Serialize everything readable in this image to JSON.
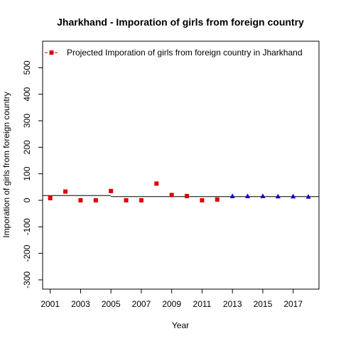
{
  "chart_data": {
    "type": "scatter",
    "title": "Jharkhand  -  Imporation of girls from foreign country",
    "xlabel": "Year",
    "ylabel": "Imporation of girls from foreign country",
    "xlim": [
      2000.5,
      2018.7
    ],
    "ylim": [
      -335,
      600
    ],
    "x_ticks": [
      2001,
      2003,
      2005,
      2007,
      2009,
      2011,
      2013,
      2015,
      2017
    ],
    "y_ticks": [
      -300,
      -200,
      -100,
      0,
      100,
      200,
      300,
      400,
      500
    ],
    "legend": {
      "placement": "top-left",
      "label": "Projected  Imporation of girls from foreign country  in  Jharkhand"
    },
    "series": [
      {
        "marker": "square",
        "color": "#dd0000",
        "points": [
          {
            "x": 2001,
            "y": 8
          },
          {
            "x": 2002,
            "y": 33
          },
          {
            "x": 2003,
            "y": 0
          },
          {
            "x": 2004,
            "y": 0
          },
          {
            "x": 2005,
            "y": 35
          },
          {
            "x": 2006,
            "y": 0
          },
          {
            "x": 2007,
            "y": 0
          },
          {
            "x": 2008,
            "y": 63
          },
          {
            "x": 2009,
            "y": 20
          },
          {
            "x": 2010,
            "y": 16
          },
          {
            "x": 2011,
            "y": 0
          },
          {
            "x": 2012,
            "y": 3
          }
        ]
      },
      {
        "marker": "triangle",
        "color": "#0000cc",
        "points": [
          {
            "x": 2013,
            "y": 15
          },
          {
            "x": 2014,
            "y": 15
          },
          {
            "x": 2015,
            "y": 15
          },
          {
            "x": 2016,
            "y": 14
          },
          {
            "x": 2017,
            "y": 14
          },
          {
            "x": 2018,
            "y": 13
          }
        ]
      }
    ],
    "reference_lines": [
      {
        "x_from": 2000.5,
        "x_to": 2005,
        "y": 18
      },
      {
        "x_from": 2005,
        "x_to": 2018.7,
        "y": 14
      }
    ]
  }
}
